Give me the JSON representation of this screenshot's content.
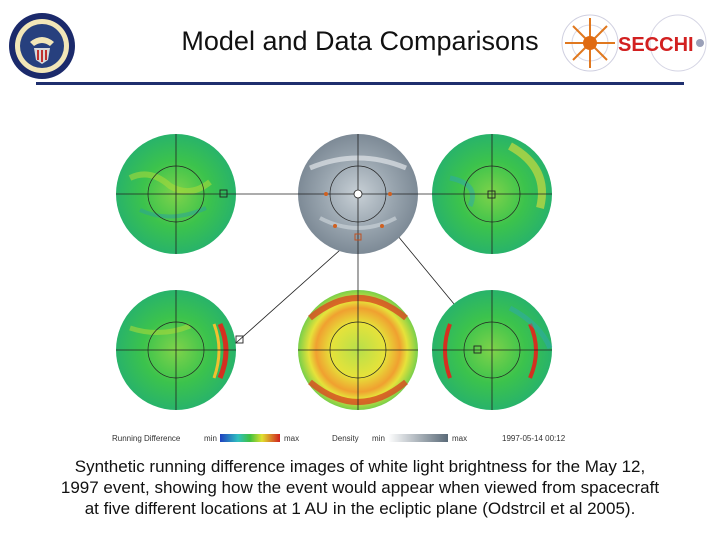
{
  "slide": {
    "title": "Model and Data Comparisons",
    "caption_lines": [
      "Synthetic running difference images of white light brightness for the May 12,",
      "1997 event, showing how the event would appear when viewed from spacecraft",
      "at five different locations at 1 AU in the ecliptic plane (Odstrcil et al 2005)."
    ]
  },
  "logos": {
    "left_seal_icon": "navy-research-seal-icon",
    "right_logo_text": "SECCHI"
  },
  "figure": {
    "legend": {
      "running_label": "Running Difference",
      "running_min": "min",
      "running_max": "max",
      "density_label": "Density",
      "density_min": "min",
      "density_max": "max",
      "timestamp": "1997-05-14  00:12"
    }
  },
  "colors": {
    "rule": "#1f2f6e",
    "secchi_text": "#d22020",
    "green_field": "#33c24a",
    "gray_field": "#8e9aa5"
  }
}
